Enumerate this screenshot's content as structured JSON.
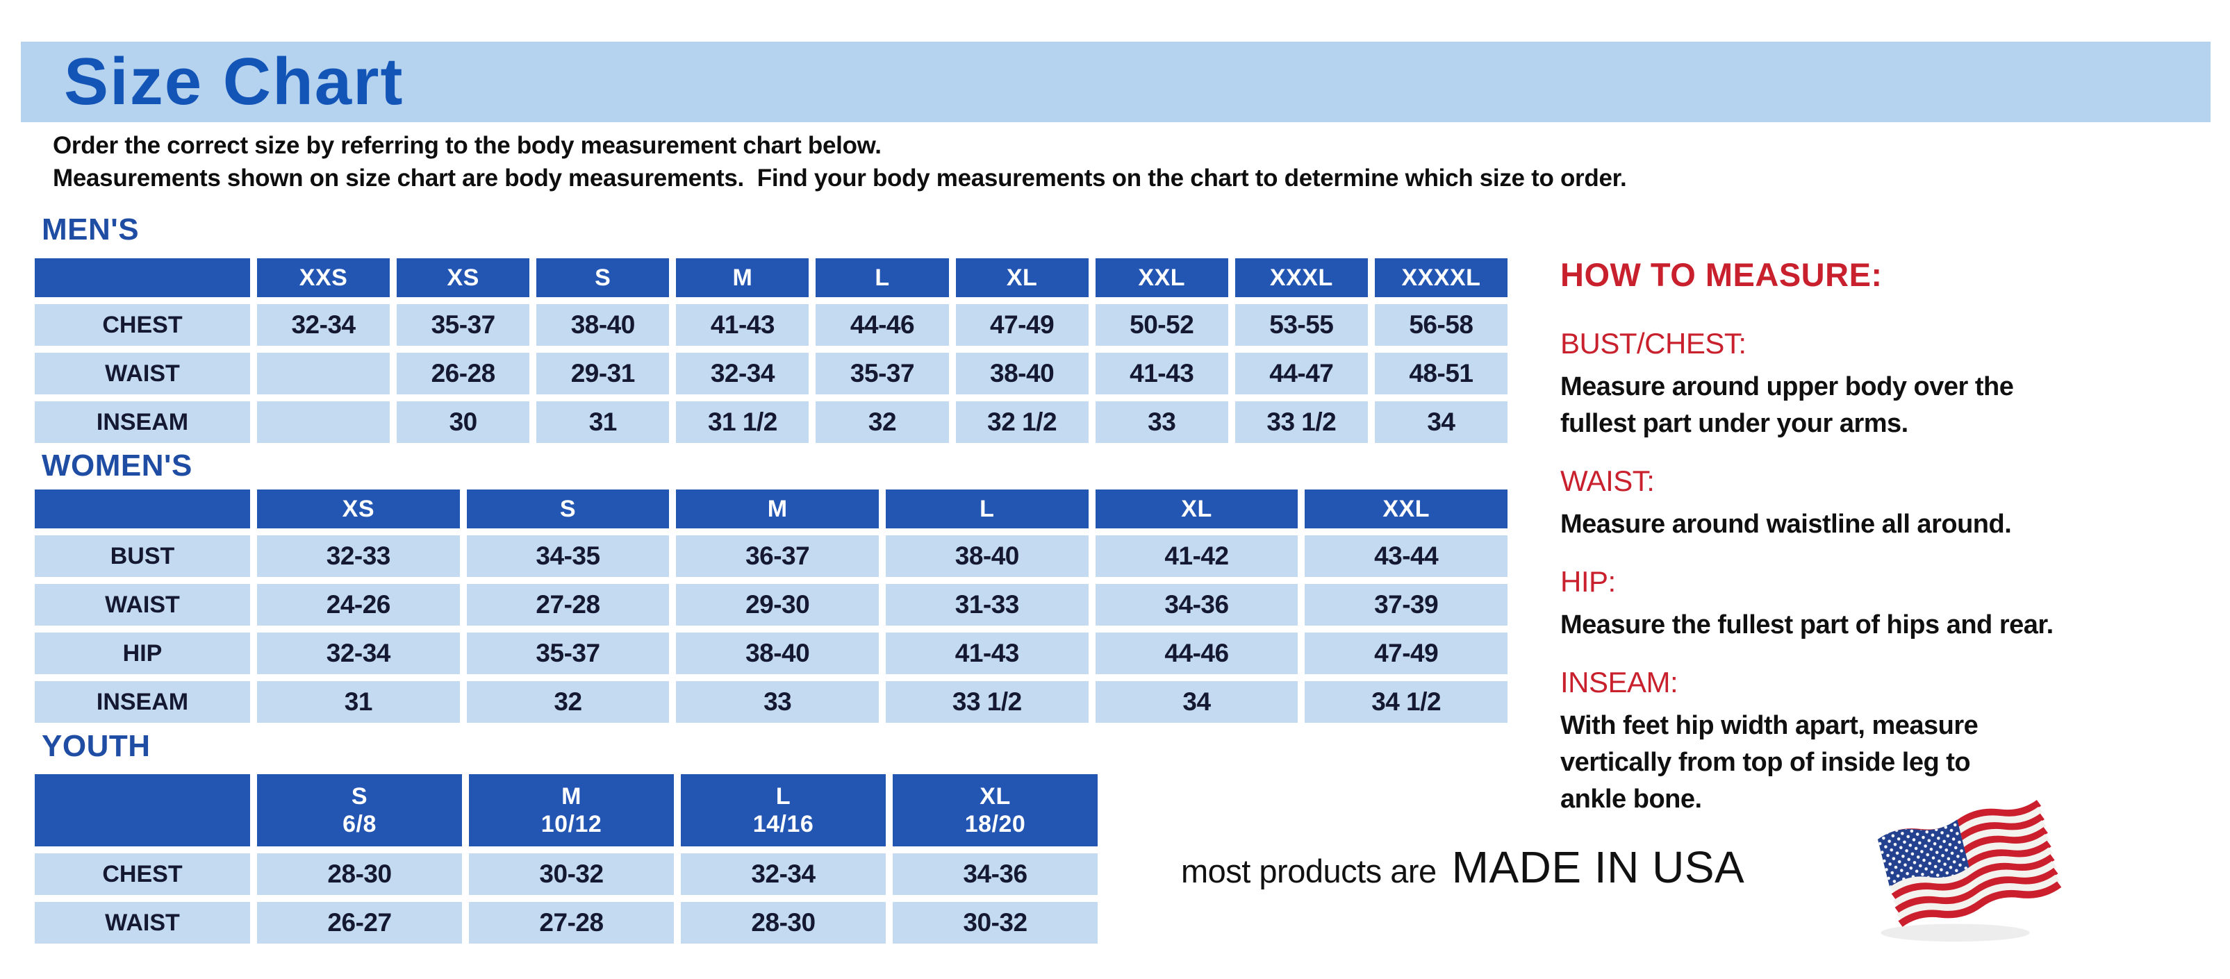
{
  "page": {
    "title": "Size Chart",
    "intro": [
      "Order the correct size by referring to the body measurement chart below.",
      "Measurements shown on size chart are body measurements.  Find your body measurements on the chart to determine which size to order."
    ]
  },
  "tables": {
    "mens": {
      "section_label": "MEN'S",
      "columns": [
        "XXS",
        "XS",
        "S",
        "M",
        "L",
        "XL",
        "XXL",
        "XXXL",
        "XXXXL"
      ],
      "rows": [
        {
          "label": "CHEST",
          "values": [
            "32-34",
            "35-37",
            "38-40",
            "41-43",
            "44-46",
            "47-49",
            "50-52",
            "53-55",
            "56-58"
          ]
        },
        {
          "label": "WAIST",
          "values": [
            "",
            "26-28",
            "29-31",
            "32-34",
            "35-37",
            "38-40",
            "41-43",
            "44-47",
            "48-51"
          ]
        },
        {
          "label": "INSEAM",
          "values": [
            "",
            "30",
            "31",
            "31 1/2",
            "32",
            "32 1/2",
            "33",
            "33 1/2",
            "34"
          ]
        }
      ]
    },
    "womens": {
      "section_label": "WOMEN'S",
      "columns": [
        "XS",
        "S",
        "M",
        "L",
        "XL",
        "XXL"
      ],
      "rows": [
        {
          "label": "BUST",
          "values": [
            "32-33",
            "34-35",
            "36-37",
            "38-40",
            "41-42",
            "43-44"
          ]
        },
        {
          "label": "WAIST",
          "values": [
            "24-26",
            "27-28",
            "29-30",
            "31-33",
            "34-36",
            "37-39"
          ]
        },
        {
          "label": "HIP",
          "values": [
            "32-34",
            "35-37",
            "38-40",
            "41-43",
            "44-46",
            "47-49"
          ]
        },
        {
          "label": "INSEAM",
          "values": [
            "31",
            "32",
            "33",
            "33 1/2",
            "34",
            "34 1/2"
          ]
        }
      ]
    },
    "youth": {
      "section_label": "YOUTH",
      "columns": [
        {
          "size": "S",
          "age_range": "6/8"
        },
        {
          "size": "M",
          "age_range": "10/12"
        },
        {
          "size": "L",
          "age_range": "14/16"
        },
        {
          "size": "XL",
          "age_range": "18/20"
        }
      ],
      "rows": [
        {
          "label": "CHEST",
          "values": [
            "28-30",
            "30-32",
            "32-34",
            "34-36"
          ]
        },
        {
          "label": "WAIST",
          "values": [
            "26-27",
            "27-28",
            "28-30",
            "30-32"
          ]
        }
      ]
    }
  },
  "how_to_measure": {
    "title": "HOW TO MEASURE:",
    "items": [
      {
        "label": "BUST/CHEST:",
        "text": "Measure around upper body over the\nfullest part under your arms."
      },
      {
        "label": "WAIST:",
        "text": "Measure around waistline all around."
      },
      {
        "label": "HIP:",
        "text": "Measure the fullest part of hips and rear."
      },
      {
        "label": "INSEAM:",
        "text": "With feet hip width apart, measure\nvertically from top of inside leg to\nankle bone."
      }
    ]
  },
  "footer": {
    "prefix": "most products are",
    "emphasis": "MADE IN USA",
    "flag_icon": "us-flag-icon"
  },
  "colors": {
    "banner_bg": "#b5d2ef",
    "title_blue": "#1355b7",
    "section_heading_blue": "#1e4da3",
    "table_header_blue": "#2355b2",
    "table_cell_blue": "#c3daf1",
    "accent_red": "#c9202e",
    "flag_red": "#cc1f2d",
    "flag_navy": "#23418e"
  }
}
